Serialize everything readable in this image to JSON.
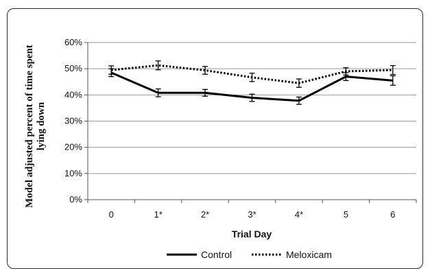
{
  "chart_data": {
    "type": "line",
    "categories": [
      "0",
      "1*",
      "2*",
      "3*",
      "4*",
      "5",
      "6"
    ],
    "xlabel": "Trial Day",
    "ylabel_lines": [
      "Model adjusted percent of time spent",
      "lying down"
    ],
    "y_ticks": [
      "0%",
      "10%",
      "20%",
      "30%",
      "40%",
      "50%",
      "60%"
    ],
    "ylim": [
      0,
      60
    ],
    "grid": true,
    "legend_position": "bottom",
    "series": [
      {
        "name": "Control",
        "style": "solid",
        "color": "#000000",
        "values": [
          48.5,
          40.8,
          40.8,
          38.9,
          37.8,
          47.0,
          45.5
        ],
        "errors": [
          1.5,
          1.5,
          1.3,
          1.4,
          1.4,
          1.5,
          1.8
        ]
      },
      {
        "name": "Meloxicam",
        "style": "dotted",
        "color": "#000000",
        "values": [
          49.5,
          51.3,
          49.4,
          46.7,
          44.5,
          49.0,
          49.5
        ],
        "errors": [
          1.6,
          1.7,
          1.5,
          1.6,
          1.6,
          1.4,
          1.7
        ]
      }
    ]
  }
}
